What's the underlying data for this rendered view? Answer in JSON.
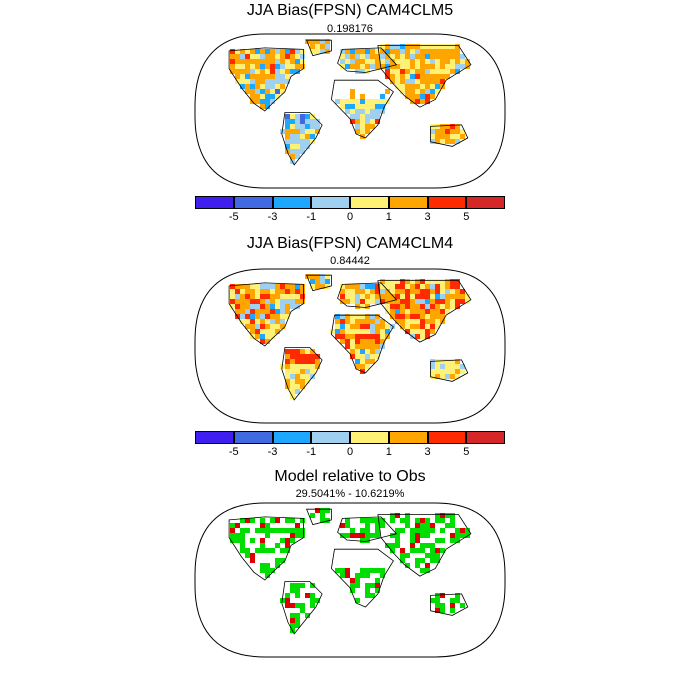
{
  "panels": [
    {
      "title": "JJA Bias(FPSN) CAM4CLM5",
      "subtitle": "0.198176",
      "kind": "bias"
    },
    {
      "title": "JJA Bias(FPSN) CAM4CLM4",
      "subtitle": "0.84442",
      "kind": "bias"
    },
    {
      "title": "Model relative to Obs",
      "subtitle": "29.5041% - 10.6219%",
      "kind": "relative"
    }
  ],
  "colorbar": {
    "colors": [
      "#3f1fef",
      "#4169e1",
      "#1ea7ff",
      "#9fd0ef",
      "#fff176",
      "#ffa500",
      "#ff2a00",
      "#d62728"
    ],
    "labels": [
      "-5",
      "-3",
      "-1",
      "0",
      "1",
      "3",
      "5"
    ]
  },
  "relative_colors": {
    "better": "#00dd00",
    "worse": "#dd0000"
  }
}
